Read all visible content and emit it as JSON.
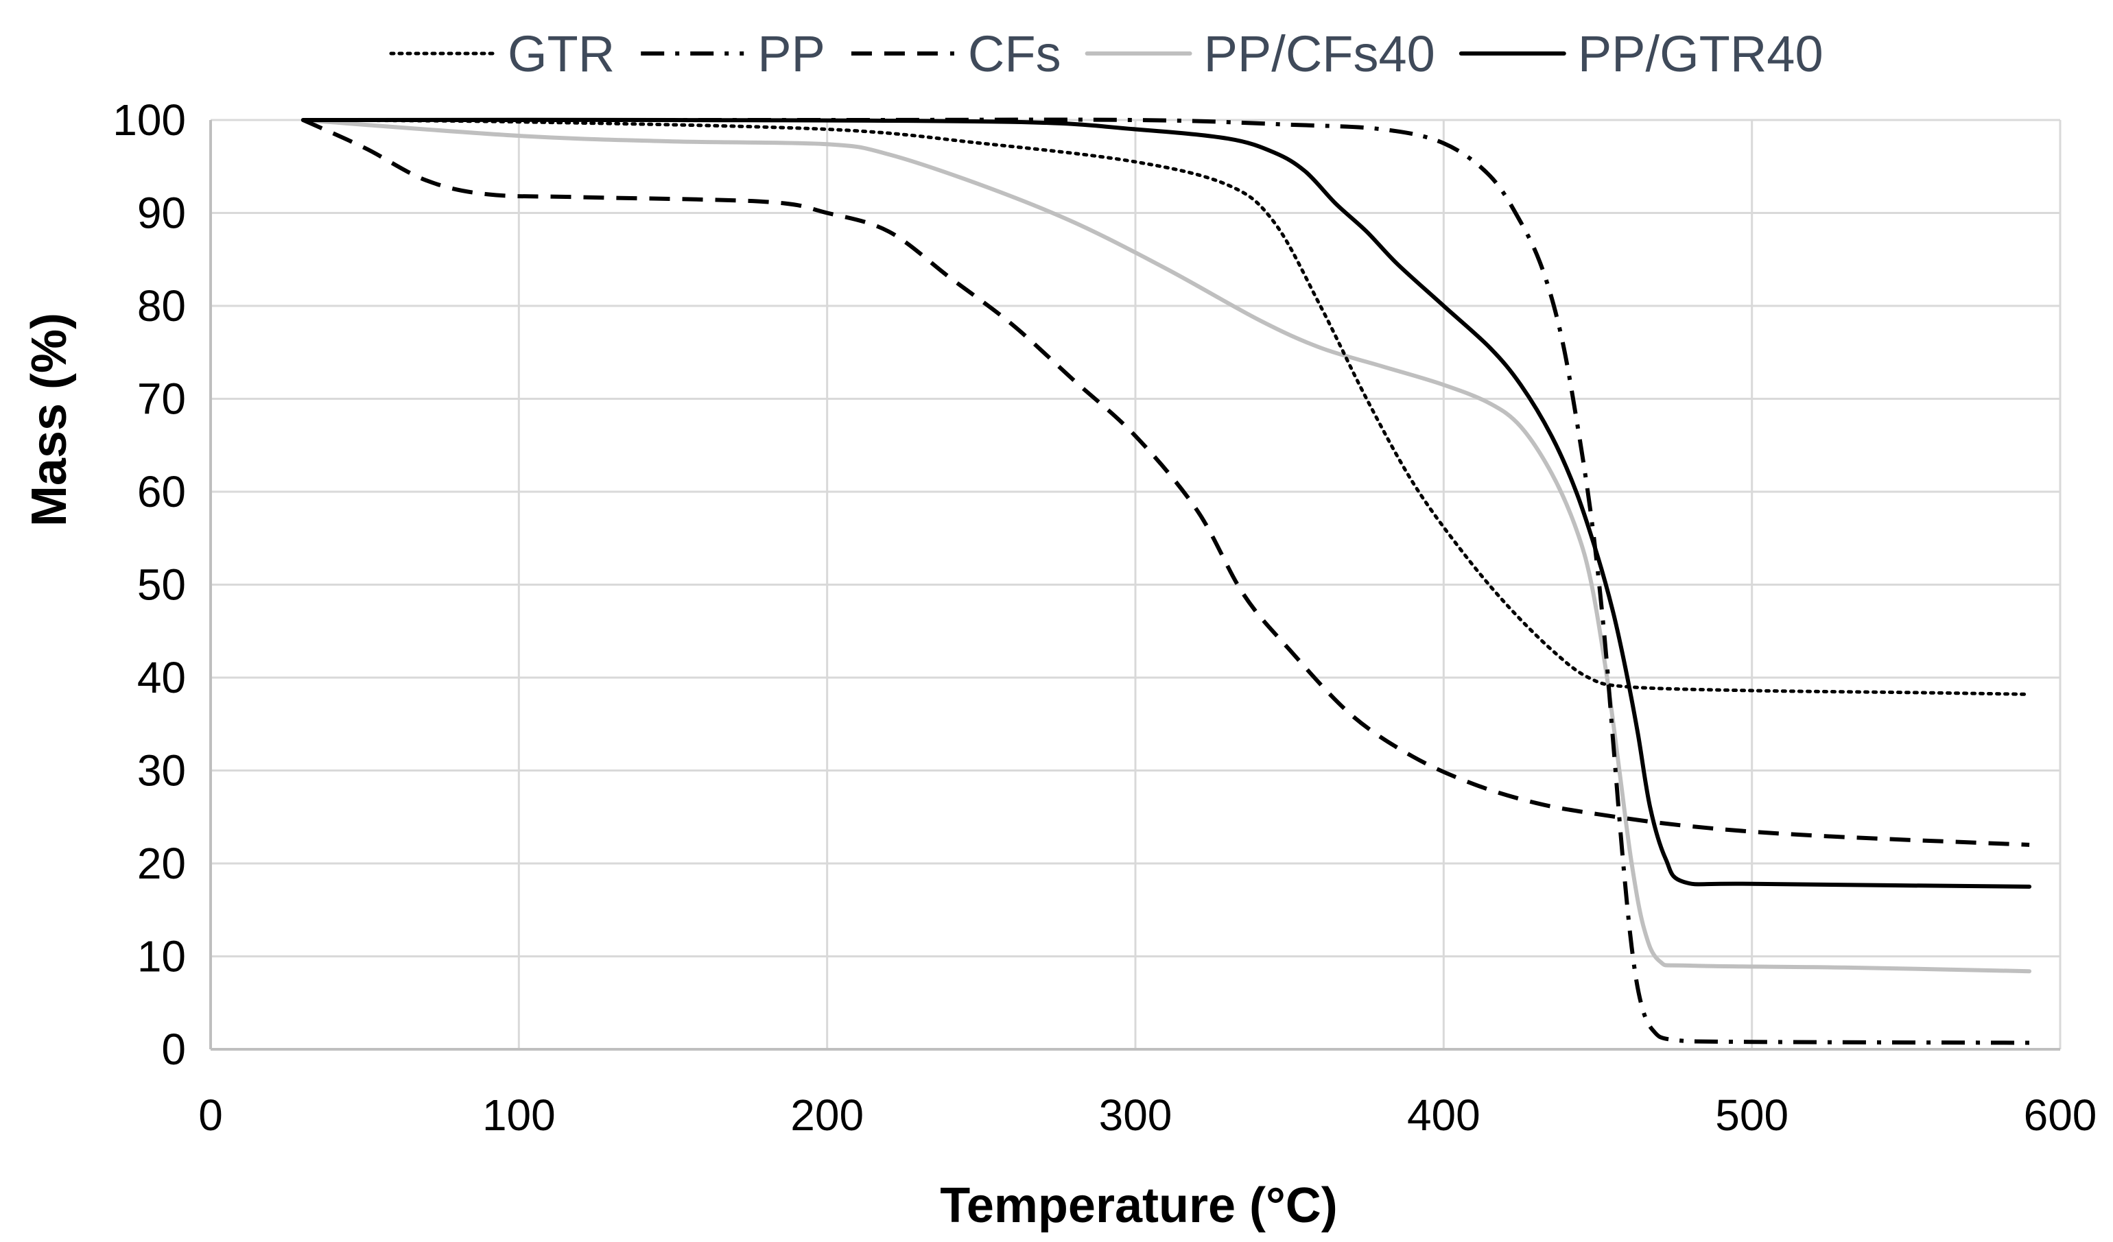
{
  "chart_data": {
    "type": "line",
    "title": "",
    "xlabel": "Temperature (°C)",
    "ylabel": "Mass  (%)",
    "xlim": [
      0,
      600
    ],
    "ylim": [
      0,
      100
    ],
    "x_ticks": [
      0,
      100,
      200,
      300,
      400,
      500,
      600
    ],
    "y_ticks": [
      0,
      10,
      20,
      30,
      40,
      50,
      60,
      70,
      80,
      90,
      100
    ],
    "x_tick_labels": [
      "0",
      "100",
      "200",
      "300",
      "400",
      "500",
      "600"
    ],
    "y_tick_labels": [
      "0",
      "10",
      "20",
      "30",
      "40",
      "50",
      "60",
      "70",
      "80",
      "90",
      "100"
    ],
    "grid": true,
    "legend_position": "top",
    "series": [
      {
        "name": "GTR",
        "color": "#000000",
        "style": "dotted",
        "points": [
          [
            30,
            100
          ],
          [
            100,
            99.8
          ],
          [
            200,
            99
          ],
          [
            250,
            97.5
          ],
          [
            300,
            95.5
          ],
          [
            330,
            93
          ],
          [
            345,
            89
          ],
          [
            360,
            80
          ],
          [
            375,
            70
          ],
          [
            390,
            61
          ],
          [
            405,
            54
          ],
          [
            420,
            48
          ],
          [
            435,
            43
          ],
          [
            447,
            40
          ],
          [
            460,
            39
          ],
          [
            500,
            38.6
          ],
          [
            550,
            38.4
          ],
          [
            590,
            38.2
          ]
        ]
      },
      {
        "name": "PP",
        "color": "#000000",
        "style": "dashdot",
        "points": [
          [
            30,
            100
          ],
          [
            200,
            100
          ],
          [
            300,
            100
          ],
          [
            350,
            99.5
          ],
          [
            380,
            99
          ],
          [
            400,
            97.5
          ],
          [
            415,
            94
          ],
          [
            425,
            89
          ],
          [
            432,
            84
          ],
          [
            438,
            77
          ],
          [
            443,
            68
          ],
          [
            448,
            57
          ],
          [
            452,
            45
          ],
          [
            455,
            33
          ],
          [
            458,
            21
          ],
          [
            461,
            11
          ],
          [
            464,
            5
          ],
          [
            468,
            2
          ],
          [
            475,
            1
          ],
          [
            500,
            0.8
          ],
          [
            590,
            0.7
          ]
        ]
      },
      {
        "name": "CFs",
        "color": "#000000",
        "style": "dashed",
        "points": [
          [
            30,
            100
          ],
          [
            50,
            97
          ],
          [
            70,
            93.5
          ],
          [
            90,
            92
          ],
          [
            120,
            91.7
          ],
          [
            180,
            91.2
          ],
          [
            200,
            90
          ],
          [
            220,
            88
          ],
          [
            240,
            83
          ],
          [
            260,
            78
          ],
          [
            280,
            72
          ],
          [
            300,
            66
          ],
          [
            320,
            58
          ],
          [
            335,
            49
          ],
          [
            350,
            43
          ],
          [
            370,
            36
          ],
          [
            390,
            31.5
          ],
          [
            410,
            28.5
          ],
          [
            430,
            26.5
          ],
          [
            450,
            25.3
          ],
          [
            480,
            24
          ],
          [
            520,
            23
          ],
          [
            590,
            22
          ]
        ]
      },
      {
        "name": "PP/CFs40",
        "color": "#bfbfbf",
        "style": "solid",
        "points": [
          [
            30,
            100
          ],
          [
            100,
            98.3
          ],
          [
            150,
            97.7
          ],
          [
            200,
            97.4
          ],
          [
            220,
            96.3
          ],
          [
            250,
            93
          ],
          [
            280,
            89
          ],
          [
            310,
            84
          ],
          [
            340,
            78.5
          ],
          [
            360,
            75.5
          ],
          [
            380,
            73.5
          ],
          [
            400,
            71.5
          ],
          [
            415,
            69.5
          ],
          [
            425,
            67
          ],
          [
            435,
            62
          ],
          [
            443,
            56
          ],
          [
            448,
            50
          ],
          [
            453,
            40
          ],
          [
            457,
            30
          ],
          [
            461,
            20
          ],
          [
            465,
            13
          ],
          [
            470,
            9.5
          ],
          [
            480,
            9
          ],
          [
            530,
            8.8
          ],
          [
            590,
            8.4
          ]
        ]
      },
      {
        "name": "PP/GTR40",
        "color": "#000000",
        "style": "solid",
        "points": [
          [
            30,
            100
          ],
          [
            150,
            100
          ],
          [
            260,
            99.8
          ],
          [
            300,
            99
          ],
          [
            330,
            98
          ],
          [
            345,
            96.5
          ],
          [
            355,
            94.5
          ],
          [
            365,
            91
          ],
          [
            375,
            88
          ],
          [
            385,
            84.5
          ],
          [
            400,
            80
          ],
          [
            415,
            75.5
          ],
          [
            425,
            71.5
          ],
          [
            435,
            66
          ],
          [
            443,
            60
          ],
          [
            450,
            53
          ],
          [
            455,
            47
          ],
          [
            459,
            41
          ],
          [
            463,
            34
          ],
          [
            467,
            26
          ],
          [
            472,
            20.5
          ],
          [
            478,
            18
          ],
          [
            500,
            17.8
          ],
          [
            590,
            17.5
          ]
        ]
      }
    ]
  }
}
